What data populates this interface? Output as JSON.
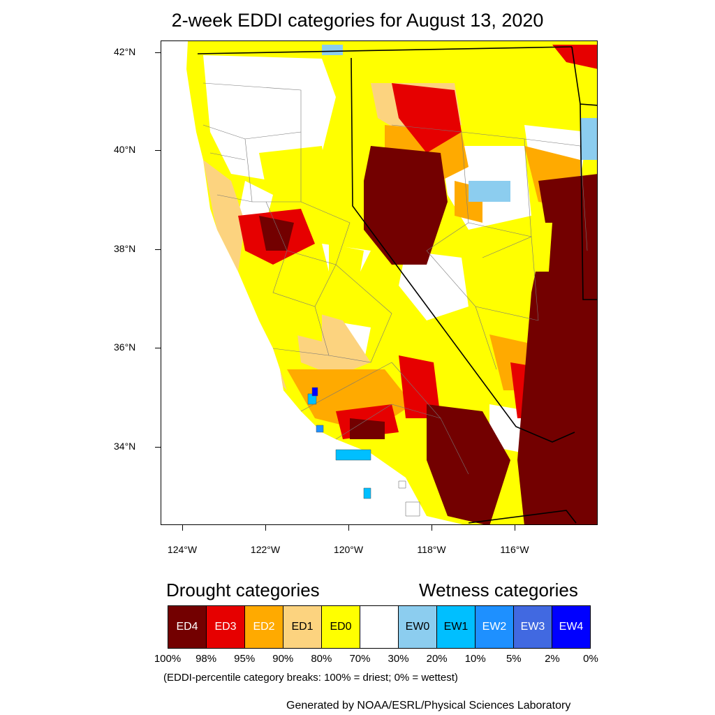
{
  "title": "2-week EDDI categories for August 13, 2020",
  "map": {
    "lat_labels": [
      "42°N",
      "40°N",
      "38°N",
      "36°N",
      "34°N"
    ],
    "lon_labels": [
      "124°W",
      "122°W",
      "120°W",
      "118°W",
      "116°W"
    ],
    "colors": {
      "ED4": "#730000",
      "ED3": "#e60000",
      "ED2": "#ffaa00",
      "ED1": "#fcd37f",
      "ED0": "#ffff00",
      "none": "#ffffff",
      "EW0": "#8ccdef",
      "EW1": "#00bfff",
      "EW2": "#1e90ff",
      "EW3": "#4169e1",
      "EW4": "#0000ff"
    }
  },
  "legend": {
    "drought_title": "Drought categories",
    "wetness_title": "Wetness categories",
    "categories": [
      {
        "label": "ED4",
        "color": "#730000",
        "text_color": "#ffffff"
      },
      {
        "label": "ED3",
        "color": "#e60000",
        "text_color": "#ffffff"
      },
      {
        "label": "ED2",
        "color": "#ffaa00",
        "text_color": "#ffffff"
      },
      {
        "label": "ED1",
        "color": "#fcd37f",
        "text_color": "#000000"
      },
      {
        "label": "ED0",
        "color": "#ffff00",
        "text_color": "#000000"
      },
      {
        "label": "",
        "color": "#ffffff",
        "text_color": "#000000"
      },
      {
        "label": "EW0",
        "color": "#8ccdef",
        "text_color": "#000000"
      },
      {
        "label": "EW1",
        "color": "#00bfff",
        "text_color": "#000000"
      },
      {
        "label": "EW2",
        "color": "#1e90ff",
        "text_color": "#ffffff"
      },
      {
        "label": "EW3",
        "color": "#4169e1",
        "text_color": "#ffffff"
      },
      {
        "label": "EW4",
        "color": "#0000ff",
        "text_color": "#ffffff"
      }
    ],
    "percentiles": [
      "100%",
      "98%",
      "95%",
      "90%",
      "80%",
      "70%",
      "30%",
      "20%",
      "10%",
      "5%",
      "2%",
      "0%"
    ],
    "note": "(EDDI-percentile category breaks: 100% = driest; 0% = wettest)"
  },
  "credit": "Generated by NOAA/ESRL/Physical Sciences Laboratory"
}
